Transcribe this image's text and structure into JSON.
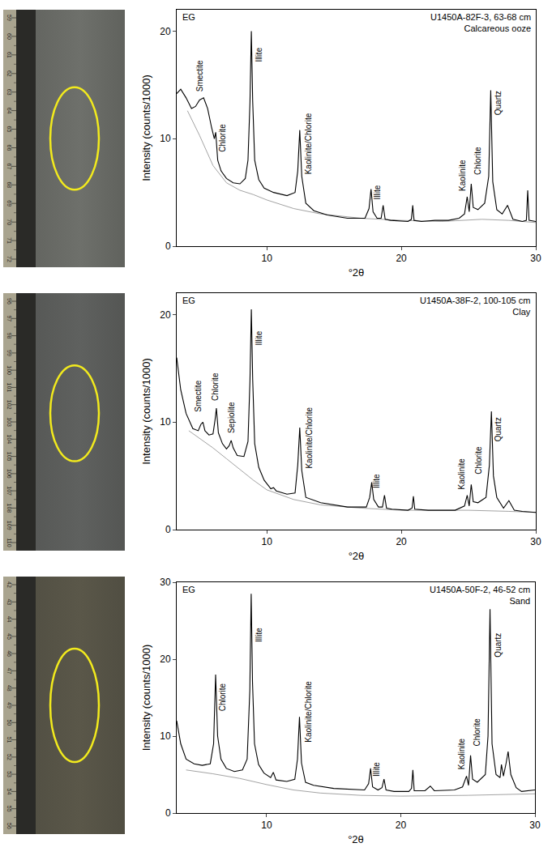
{
  "chart_data": [
    {
      "type": "line",
      "label": "EG",
      "title": "U1450A-82F-3, 63-68 cm",
      "subtitle": "Calcareous ooze",
      "x_label": "°2θ",
      "y_label": "Intensity (counts/1000)",
      "xlim": [
        3.3,
        30
      ],
      "xticks": [
        10,
        20,
        30
      ],
      "ylim": [
        0,
        22
      ],
      "yticks": [
        0,
        10,
        20
      ],
      "series": [
        {
          "color": "#000000",
          "x": [
            3.3,
            3.6,
            4.0,
            4.4,
            4.7,
            5.0,
            5.3,
            5.6,
            5.9,
            6.1,
            6.2,
            6.35,
            6.6,
            7.0,
            7.5,
            8.0,
            8.4,
            8.6,
            8.75,
            8.85,
            8.95,
            9.1,
            9.4,
            9.8,
            10.5,
            11.5,
            12.1,
            12.3,
            12.45,
            12.6,
            12.9,
            13.5,
            14.5,
            16.0,
            17.3,
            17.6,
            17.75,
            17.9,
            18.2,
            18.5,
            18.65,
            18.8,
            19.2,
            20.5,
            20.75,
            20.85,
            20.95,
            21.5,
            22.5,
            23.5,
            24.3,
            24.7,
            24.9,
            25.05,
            25.2,
            25.35,
            25.7,
            26.2,
            26.5,
            26.65,
            26.8,
            27.1,
            27.5,
            27.9,
            28.3,
            29.0,
            29.3,
            29.4,
            29.5,
            30.0
          ],
          "values": [
            14.2,
            14.6,
            13.8,
            12.8,
            13.0,
            13.6,
            13.8,
            12.8,
            11.0,
            10.0,
            10.6,
            8.0,
            7.0,
            6.3,
            5.9,
            5.8,
            6.3,
            8.0,
            13.5,
            20.0,
            13.5,
            8.0,
            6.2,
            5.4,
            5.0,
            4.7,
            5.0,
            7.0,
            10.8,
            6.5,
            4.0,
            3.3,
            2.9,
            2.6,
            2.6,
            3.5,
            5.3,
            3.2,
            2.6,
            2.6,
            3.8,
            2.5,
            2.4,
            2.3,
            2.5,
            3.8,
            2.4,
            2.3,
            2.4,
            2.4,
            2.6,
            3.0,
            4.6,
            3.2,
            5.8,
            3.6,
            3.4,
            4.0,
            6.5,
            14.5,
            6.0,
            3.4,
            3.0,
            3.8,
            2.5,
            2.3,
            2.4,
            5.2,
            2.4,
            2.3
          ]
        },
        {
          "color": "#8c8c8c",
          "x": [
            4.1,
            5,
            6,
            7,
            8,
            9,
            10,
            12,
            14,
            17,
            20,
            23,
            26,
            28,
            30
          ],
          "values": [
            12.6,
            10.3,
            7.5,
            5.9,
            5.2,
            4.8,
            4.3,
            3.5,
            3.0,
            2.6,
            2.4,
            2.3,
            2.5,
            2.4,
            2.2
          ]
        }
      ],
      "annotations": [
        {
          "text": "Smectite",
          "x": 5.0,
          "y": 14.2
        },
        {
          "text": "Chlorite",
          "x": 6.7,
          "y": 8.6
        },
        {
          "text": "Illite",
          "x": 9.4,
          "y": 17
        },
        {
          "text": "Kaolinite/Chlorite",
          "x": 13.1,
          "y": 6.5
        },
        {
          "text": "Illite",
          "x": 18.2,
          "y": 4.2
        },
        {
          "text": "Kaolinite",
          "x": 24.5,
          "y": 5
        },
        {
          "text": "Chlorite",
          "x": 25.7,
          "y": 6.5
        },
        {
          "text": "Quartz",
          "x": 27.2,
          "y": 12
        }
      ]
    },
    {
      "type": "line",
      "label": "EG",
      "title": "U1450A-38F-2, 100-105 cm",
      "subtitle": "Clay",
      "x_label": "°2θ",
      "y_label": "Intensity (counts/1000)",
      "xlim": [
        3.3,
        30
      ],
      "xticks": [
        10,
        20,
        30
      ],
      "ylim": [
        0,
        22
      ],
      "yticks": [
        0,
        10,
        20
      ],
      "series": [
        {
          "color": "#000000",
          "x": [
            3.3,
            3.6,
            4.0,
            4.5,
            4.9,
            5.1,
            5.25,
            5.4,
            5.7,
            6.0,
            6.15,
            6.25,
            6.4,
            6.7,
            7.0,
            7.2,
            7.35,
            7.5,
            7.8,
            8.3,
            8.6,
            8.75,
            8.85,
            8.95,
            9.1,
            9.4,
            9.8,
            10.3,
            10.5,
            10.7,
            11.5,
            12.1,
            12.3,
            12.45,
            12.6,
            12.9,
            14.0,
            16.0,
            17.4,
            17.65,
            17.8,
            17.95,
            18.3,
            18.6,
            18.75,
            18.9,
            19.3,
            20.5,
            20.8,
            20.9,
            21.0,
            22,
            24.0,
            24.7,
            24.9,
            25.05,
            25.2,
            25.35,
            25.7,
            26.3,
            26.55,
            26.7,
            26.85,
            27.1,
            27.6,
            28.0,
            28.4,
            29.0,
            30.0
          ],
          "values": [
            16.0,
            13.0,
            10.8,
            9.4,
            9.2,
            9.8,
            10.0,
            9.2,
            8.8,
            8.9,
            10.2,
            11.3,
            9.0,
            8.0,
            7.5,
            7.8,
            8.3,
            7.6,
            6.9,
            6.8,
            8.2,
            14.0,
            20.5,
            14.0,
            8.0,
            5.8,
            4.6,
            3.8,
            3.9,
            3.6,
            3.3,
            3.4,
            6.0,
            9.5,
            5.5,
            3.0,
            2.5,
            2.1,
            2.1,
            3.0,
            4.4,
            2.8,
            2.1,
            2.1,
            3.2,
            2.0,
            1.9,
            1.8,
            2.0,
            3.1,
            1.9,
            1.8,
            1.8,
            2.2,
            3.2,
            2.2,
            4.2,
            2.6,
            2.5,
            3.0,
            6.0,
            11.0,
            5.0,
            3.0,
            2.0,
            2.7,
            1.8,
            1.7,
            1.6
          ]
        },
        {
          "color": "#8c8c8c",
          "x": [
            4.2,
            5,
            6,
            7,
            8,
            9,
            10,
            12,
            14,
            17,
            20,
            25,
            28,
            30
          ],
          "values": [
            9.2,
            8.5,
            7.6,
            6.6,
            5.6,
            4.6,
            3.7,
            2.8,
            2.3,
            2.0,
            1.8,
            1.8,
            1.7,
            1.6
          ]
        }
      ],
      "annotations": [
        {
          "text": "Smectite",
          "x": 4.9,
          "y": 10.8
        },
        {
          "text": "Chlorite",
          "x": 6.2,
          "y": 11.8
        },
        {
          "text": "Sepiolite",
          "x": 7.35,
          "y": 8.8
        },
        {
          "text": "Illite",
          "x": 9.4,
          "y": 17
        },
        {
          "text": "Kaolinite/Chlorite",
          "x": 13.1,
          "y": 5.5
        },
        {
          "text": "Illite",
          "x": 18.2,
          "y": 3.7
        },
        {
          "text": "Kaolinite",
          "x": 24.5,
          "y": 3.6
        },
        {
          "text": "Chlorite",
          "x": 25.7,
          "y": 5
        },
        {
          "text": "Quartz",
          "x": 27.2,
          "y": 8
        }
      ]
    },
    {
      "type": "line",
      "label": "EG",
      "title": "U1450A-50F-2, 46-52 cm",
      "subtitle": "Sand",
      "x_label": "°2θ",
      "y_label": "Intensity (counts/1000)",
      "xlim": [
        3.3,
        30
      ],
      "xticks": [
        10,
        20,
        30
      ],
      "ylim": [
        0,
        30
      ],
      "yticks": [
        0,
        10,
        20,
        30
      ],
      "series": [
        {
          "color": "#000000",
          "x": [
            3.3,
            3.6,
            4.0,
            4.6,
            5.2,
            5.8,
            6.05,
            6.2,
            6.35,
            6.6,
            7.0,
            7.6,
            8.2,
            8.55,
            8.75,
            8.85,
            8.95,
            9.1,
            9.4,
            9.8,
            10.3,
            10.5,
            10.7,
            11.5,
            12.1,
            12.3,
            12.45,
            12.6,
            12.9,
            13.5,
            15.0,
            17.3,
            17.6,
            17.75,
            17.9,
            18.3,
            18.6,
            18.75,
            18.9,
            19.5,
            20.6,
            20.8,
            20.9,
            21.0,
            21.8,
            22.2,
            22.5,
            24.0,
            24.6,
            24.9,
            25.05,
            25.2,
            25.35,
            25.7,
            26.3,
            26.5,
            26.65,
            26.8,
            27.1,
            27.4,
            27.5,
            27.65,
            27.85,
            28.0,
            28.2,
            28.6,
            29.0,
            30.0
          ],
          "values": [
            12.0,
            9.0,
            7.0,
            6.4,
            6.2,
            6.4,
            9.0,
            18.0,
            10.0,
            7.0,
            5.8,
            5.4,
            5.6,
            7.0,
            16.0,
            28.5,
            17.0,
            9.0,
            6.3,
            5.2,
            4.6,
            5.3,
            4.3,
            4.1,
            4.4,
            7.0,
            12.5,
            6.5,
            4.0,
            3.6,
            3.2,
            3.0,
            3.8,
            5.8,
            3.4,
            3.0,
            3.3,
            4.4,
            3.0,
            2.8,
            2.8,
            3.2,
            5.6,
            2.9,
            2.9,
            3.5,
            2.9,
            3.0,
            3.4,
            4.8,
            3.6,
            7.5,
            4.4,
            4.0,
            5.0,
            10.0,
            26.5,
            9.0,
            5.0,
            4.6,
            6.3,
            4.8,
            6.5,
            8.0,
            5.0,
            3.3,
            2.8,
            3.0
          ]
        },
        {
          "color": "#8c8c8c",
          "x": [
            4,
            6,
            8,
            10,
            12,
            14,
            17,
            20,
            25,
            27,
            30
          ],
          "values": [
            5.6,
            5.1,
            4.5,
            3.7,
            3.0,
            2.6,
            2.3,
            2.2,
            2.3,
            2.4,
            2.5
          ]
        }
      ],
      "annotations": [
        {
          "text": "Chlorite",
          "x": 6.7,
          "y": 13
        },
        {
          "text": "Illite",
          "x": 9.4,
          "y": 22
        },
        {
          "text": "Kaolinite/Chlorite",
          "x": 13.1,
          "y": 9
        },
        {
          "text": "Illite",
          "x": 18.2,
          "y": 4.5
        },
        {
          "text": "Kaolinite",
          "x": 24.5,
          "y": 5.5
        },
        {
          "text": "Chlorite",
          "x": 25.7,
          "y": 8.5
        },
        {
          "text": "Quartz",
          "x": 27.2,
          "y": 20
        }
      ]
    }
  ],
  "core_photos": [
    {
      "ruler": [
        59,
        60,
        61,
        62,
        63,
        64,
        65,
        66,
        67,
        68,
        69,
        70,
        71,
        72
      ],
      "highlight_cm": [
        63,
        68
      ],
      "color": "#6e706b"
    },
    {
      "ruler": [
        96,
        97,
        98,
        99,
        100,
        101,
        102,
        103,
        104,
        105,
        106,
        107,
        108,
        109,
        110
      ],
      "highlight_cm": [
        100,
        105
      ],
      "color": "#5f615f"
    },
    {
      "ruler": [
        42,
        43,
        44,
        45,
        46,
        47,
        48,
        49,
        50,
        51,
        52,
        53,
        54,
        55,
        56
      ],
      "highlight_cm": [
        46,
        52
      ],
      "color": "#5a5749"
    }
  ]
}
